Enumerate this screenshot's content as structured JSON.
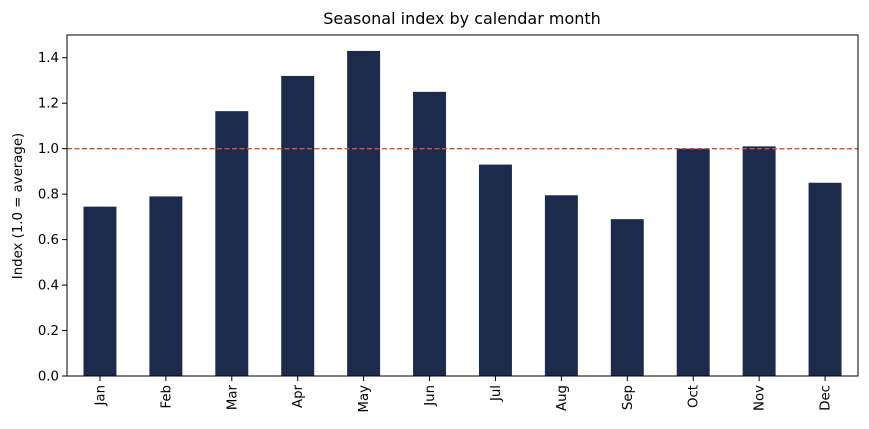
{
  "chart_data": {
    "type": "bar",
    "title": "Seasonal index by calendar month",
    "xlabel": "",
    "ylabel": "Index (1.0 = average)",
    "categories": [
      "Jan",
      "Feb",
      "Mar",
      "Apr",
      "May",
      "Jun",
      "Jul",
      "Aug",
      "Sep",
      "Oct",
      "Nov",
      "Dec"
    ],
    "values": [
      0.745,
      0.79,
      1.165,
      1.32,
      1.43,
      1.25,
      0.93,
      0.795,
      0.69,
      1.0,
      1.01,
      0.85
    ],
    "ylim": [
      0,
      1.5
    ],
    "yticks": [
      "0.0",
      "0.2",
      "0.4",
      "0.6",
      "0.8",
      "1.0",
      "1.2",
      "1.4"
    ],
    "reference_line": {
      "value": 1.0,
      "style": "dashed"
    },
    "grid": false,
    "colors": {
      "bar": "#1c2a4b",
      "reference_line": "#c8553d",
      "axis": "#000000"
    }
  }
}
